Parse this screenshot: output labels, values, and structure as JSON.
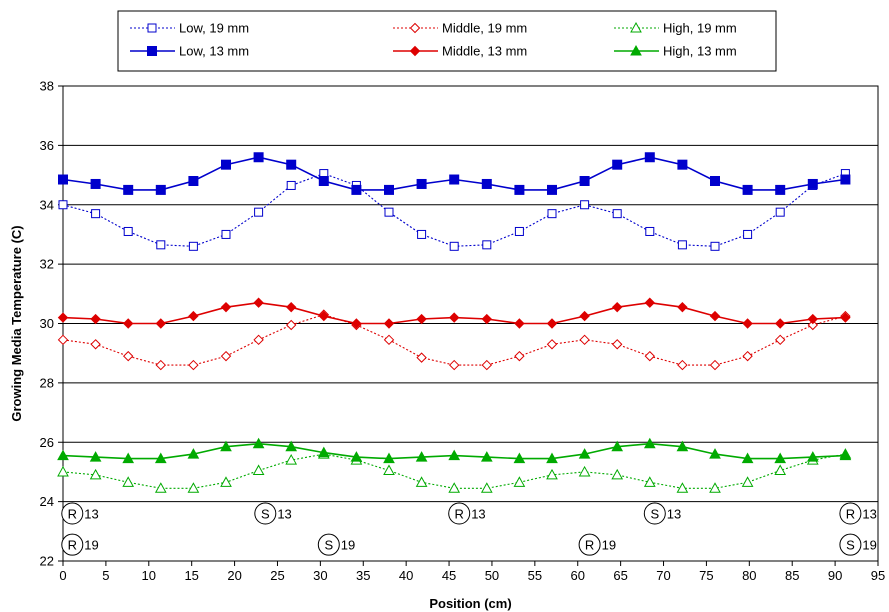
{
  "chart_data": {
    "type": "line",
    "title": "",
    "xlabel": "Position (cm)",
    "ylabel": "Growing Media Temperature (C)",
    "xlim": [
      0,
      95
    ],
    "ylim": [
      22,
      38
    ],
    "xticks": [
      0,
      5,
      10,
      15,
      20,
      25,
      30,
      35,
      40,
      45,
      50,
      55,
      60,
      65,
      70,
      75,
      80,
      85,
      90,
      95
    ],
    "yticks": [
      22,
      24,
      26,
      28,
      30,
      32,
      34,
      36,
      38
    ],
    "grid": "horizontal",
    "legend_position": "top",
    "x": [
      0,
      3.8,
      7.6,
      11.4,
      15.2,
      19,
      22.8,
      26.6,
      30.4,
      34.2,
      38,
      41.8,
      45.6,
      49.4,
      53.2,
      57,
      60.8,
      64.6,
      68.4,
      72.2,
      76,
      79.8,
      83.6,
      87.4,
      91.2
    ],
    "series": [
      {
        "name": "Low, 19 mm",
        "color": "#0000cc",
        "marker": "open-square",
        "line": "dotted",
        "values": [
          34.0,
          33.7,
          33.1,
          32.65,
          32.6,
          33.0,
          33.75,
          34.65,
          35.05,
          34.65,
          33.75,
          33.0,
          32.6,
          32.65,
          33.1,
          33.7,
          34.0,
          33.7,
          33.1,
          32.65,
          32.6,
          33.0,
          33.75,
          34.65,
          35.05
        ]
      },
      {
        "name": "Middle, 19 mm",
        "color": "#dd0000",
        "marker": "open-diamond",
        "line": "dotted",
        "values": [
          29.45,
          29.3,
          28.9,
          28.6,
          28.6,
          28.9,
          29.45,
          29.95,
          30.3,
          29.95,
          29.45,
          28.85,
          28.6,
          28.6,
          28.9,
          29.3,
          29.45,
          29.3,
          28.9,
          28.6,
          28.6,
          28.9,
          29.45,
          29.95,
          30.25
        ]
      },
      {
        "name": "High, 19 mm",
        "color": "#00aa00",
        "marker": "open-triangle",
        "line": "dotted",
        "values": [
          25.0,
          24.9,
          24.65,
          24.45,
          24.45,
          24.65,
          25.05,
          25.4,
          25.6,
          25.4,
          25.05,
          24.65,
          24.45,
          24.45,
          24.65,
          24.9,
          25.0,
          24.9,
          24.65,
          24.45,
          24.45,
          24.65,
          25.05,
          25.4,
          25.6
        ]
      },
      {
        "name": "Low, 13 mm",
        "color": "#0000cc",
        "marker": "filled-square",
        "line": "solid",
        "values": [
          34.85,
          34.7,
          34.5,
          34.5,
          34.8,
          35.35,
          35.6,
          35.35,
          34.8,
          34.5,
          34.5,
          34.7,
          34.85,
          34.7,
          34.5,
          34.5,
          34.8,
          35.35,
          35.6,
          35.35,
          34.8,
          34.5,
          34.5,
          34.7,
          34.85
        ]
      },
      {
        "name": "Middle, 13 mm",
        "color": "#dd0000",
        "marker": "filled-diamond",
        "line": "solid",
        "values": [
          30.2,
          30.15,
          30.0,
          30.0,
          30.25,
          30.55,
          30.7,
          30.55,
          30.25,
          30.0,
          30.0,
          30.15,
          30.2,
          30.15,
          30.0,
          30.0,
          30.25,
          30.55,
          30.7,
          30.55,
          30.25,
          30.0,
          30.0,
          30.15,
          30.2
        ]
      },
      {
        "name": "High, 13 mm",
        "color": "#00aa00",
        "marker": "filled-triangle",
        "line": "solid",
        "values": [
          25.55,
          25.5,
          25.45,
          25.45,
          25.6,
          25.85,
          25.95,
          25.85,
          25.65,
          25.5,
          25.45,
          25.5,
          25.55,
          25.5,
          25.45,
          25.45,
          25.6,
          25.85,
          25.95,
          25.85,
          25.6,
          25.45,
          25.45,
          25.5,
          25.55
        ]
      }
    ],
    "legend": {
      "entries": [
        "Low, 19 mm",
        "Middle, 19 mm",
        "High, 19 mm",
        "Low, 13 mm",
        "Middle, 13 mm",
        "High, 13 mm"
      ]
    },
    "annotations": [
      {
        "symbol": "R",
        "label": "13",
        "x": 0.5,
        "y": 23.6
      },
      {
        "symbol": "S",
        "label": "13",
        "x": 23,
        "y": 23.6
      },
      {
        "symbol": "R",
        "label": "13",
        "x": 45.6,
        "y": 23.6
      },
      {
        "symbol": "S",
        "label": "13",
        "x": 68.4,
        "y": 23.6
      },
      {
        "symbol": "R",
        "label": "13",
        "x": 91.2,
        "y": 23.6
      },
      {
        "symbol": "R",
        "label": "19",
        "x": 0.5,
        "y": 22.55
      },
      {
        "symbol": "S",
        "label": "19",
        "x": 30.4,
        "y": 22.55
      },
      {
        "symbol": "R",
        "label": "19",
        "x": 60.8,
        "y": 22.55
      },
      {
        "symbol": "S",
        "label": "19",
        "x": 91.2,
        "y": 22.55
      }
    ]
  }
}
